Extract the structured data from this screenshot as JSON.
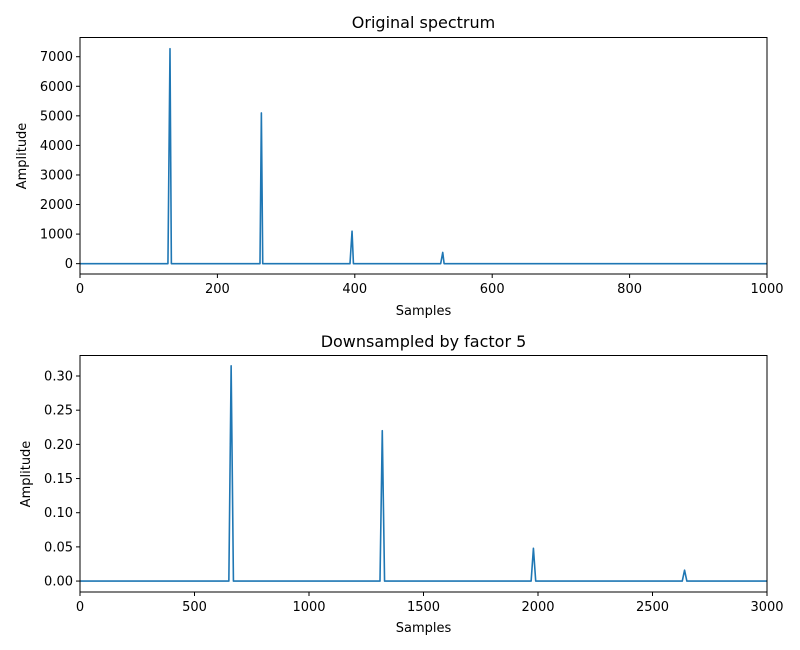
{
  "chart_data": [
    {
      "type": "line",
      "title": "Original spectrum",
      "xlabel": "Samples",
      "ylabel": "Amplitude",
      "xlim": [
        0,
        1000
      ],
      "ylim": [
        -350,
        7650
      ],
      "xticks": [
        0,
        200,
        400,
        600,
        800,
        1000
      ],
      "yticks": [
        0,
        1000,
        2000,
        3000,
        4000,
        5000,
        6000,
        7000
      ],
      "grid": false,
      "color": "#1f77b4",
      "x": [
        0,
        128,
        131,
        133,
        262,
        264,
        266,
        393,
        396,
        398,
        525,
        528,
        530,
        1000
      ],
      "y": [
        0,
        0,
        7270,
        0,
        0,
        5100,
        0,
        0,
        1100,
        0,
        0,
        380,
        0,
        0
      ]
    },
    {
      "type": "line",
      "title": "Downsampled by factor 5",
      "xlabel": "Samples",
      "ylabel": "Amplitude",
      "xlim": [
        0,
        3000
      ],
      "ylim": [
        -0.016,
        0.33
      ],
      "xticks": [
        0,
        500,
        1000,
        1500,
        2000,
        2500,
        3000
      ],
      "yticks": [
        "0.00",
        "0.05",
        "0.10",
        "0.15",
        "0.20",
        "0.25",
        "0.30"
      ],
      "grid": false,
      "color": "#1f77b4",
      "x": [
        0,
        650,
        660,
        670,
        1310,
        1320,
        1330,
        1970,
        1980,
        1990,
        2630,
        2640,
        2650,
        3000
      ],
      "y": [
        0,
        0,
        0.315,
        0,
        0,
        0.22,
        0,
        0,
        0.048,
        0,
        0,
        0.016,
        0,
        0
      ]
    }
  ]
}
